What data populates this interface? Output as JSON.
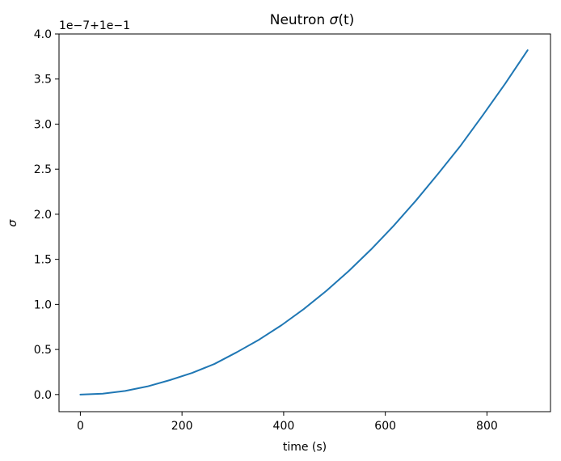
{
  "chart_data": {
    "type": "line",
    "title": "Neutron σ(t)",
    "title_parts": {
      "prefix": "Neutron ",
      "sigma": "σ",
      "arg": "(t)"
    },
    "xlabel": "time (s)",
    "ylabel": "σ",
    "offset_label": "1e−7+1e−1",
    "xlim": [
      -42,
      925
    ],
    "ylim": [
      -0.19,
      4.0
    ],
    "x_ticks": [
      0,
      200,
      400,
      600,
      800
    ],
    "x_tick_labels": [
      "0",
      "200",
      "400",
      "600",
      "800"
    ],
    "y_ticks": [
      0.0,
      0.5,
      1.0,
      1.5,
      2.0,
      2.5,
      3.0,
      3.5,
      4.0
    ],
    "y_tick_labels": [
      "0.0",
      "0.5",
      "1.0",
      "1.5",
      "2.0",
      "2.5",
      "3.0",
      "3.5",
      "4.0"
    ],
    "grid": false,
    "legend": "none",
    "series": [
      {
        "color": "#1f77b4",
        "x": [
          0,
          44,
          88,
          132,
          176,
          220,
          264,
          308,
          352,
          396,
          440,
          484,
          528,
          572,
          616,
          660,
          704,
          748,
          792,
          836,
          880
        ],
        "y": [
          0.0,
          0.01,
          0.04,
          0.09,
          0.16,
          0.24,
          0.34,
          0.47,
          0.61,
          0.77,
          0.95,
          1.15,
          1.37,
          1.61,
          1.87,
          2.15,
          2.45,
          2.76,
          3.1,
          3.45,
          3.82
        ]
      }
    ]
  }
}
